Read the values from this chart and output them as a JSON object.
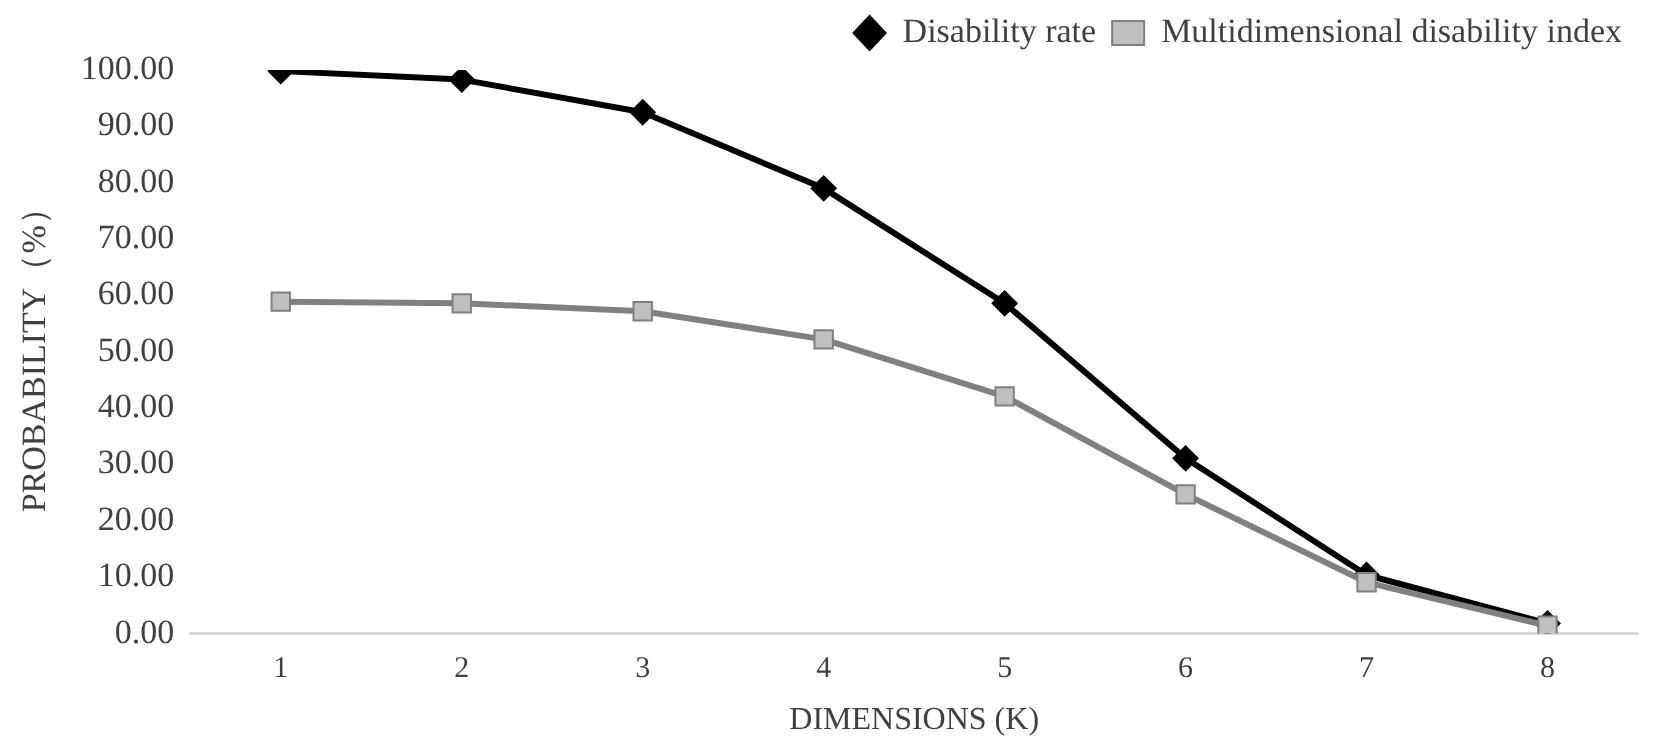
{
  "chart_data": {
    "type": "line",
    "xlabel": "DIMENSIONS (K)",
    "ylabel": "PROBABILITY（%）",
    "categories": [
      "1",
      "2",
      "3",
      "4",
      "5",
      "6",
      "7",
      "8"
    ],
    "series": [
      {
        "name": "Disability rate",
        "color": "#000000",
        "marker": "diamond",
        "values": [
          99.8,
          98.3,
          92.5,
          79.0,
          58.6,
          31.1,
          10.4,
          1.8
        ]
      },
      {
        "name": "Multidimensional disability index",
        "color": "#808080",
        "marker": "square",
        "values": [
          58.9,
          58.6,
          57.2,
          52.2,
          42.1,
          24.7,
          9.1,
          1.4
        ]
      }
    ],
    "ylim": [
      0,
      100
    ],
    "yticks": [
      {
        "value": 0,
        "label": "0.00"
      },
      {
        "value": 10,
        "label": "10.00"
      },
      {
        "value": 20,
        "label": "20.00"
      },
      {
        "value": 30,
        "label": "30.00"
      },
      {
        "value": 40,
        "label": "40.00"
      },
      {
        "value": 50,
        "label": "50.00"
      },
      {
        "value": 60,
        "label": "60.00"
      },
      {
        "value": 70,
        "label": "70.00"
      },
      {
        "value": 80,
        "label": "80.00"
      },
      {
        "value": 90,
        "label": "90.00"
      },
      {
        "value": 100,
        "label": "100.00"
      }
    ],
    "grid": false,
    "legend": "top right",
    "line_style": "solid"
  }
}
